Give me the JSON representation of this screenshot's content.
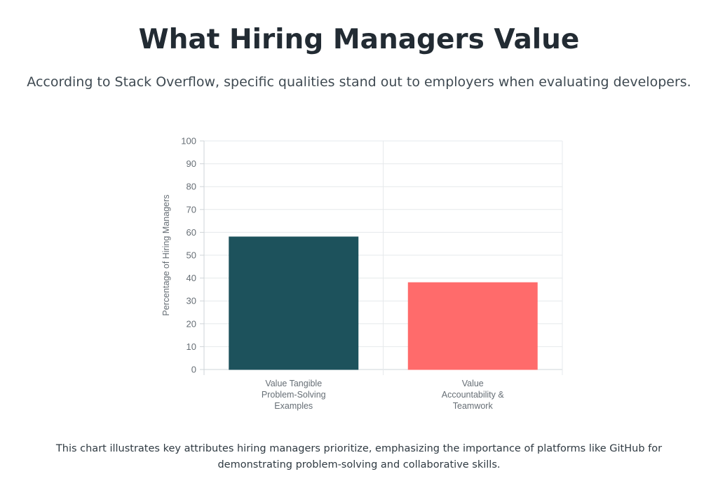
{
  "header": {
    "title": "What Hiring Managers Value",
    "subtitle": "According to Stack Overflow, specific qualities stand out to employers when evaluating developers."
  },
  "footer": {
    "caption": "This chart illustrates key attributes hiring managers prioritize, emphasizing the importance of platforms like GitHub for demonstrating problem-solving and collaborative skills."
  },
  "chart_data": {
    "type": "bar",
    "categories": [
      [
        "Value Tangible",
        "Problem-Solving",
        "Examples"
      ],
      [
        "Value",
        "Accountability &",
        "Teamwork"
      ]
    ],
    "values": [
      58,
      38
    ],
    "colors": [
      "#1d525c",
      "#ff6b6b"
    ],
    "xlabel": "",
    "ylabel": "Percentage of Hiring Managers",
    "ylim": [
      0,
      100
    ],
    "yticks": [
      0,
      10,
      20,
      30,
      40,
      50,
      60,
      70,
      80,
      90,
      100
    ],
    "grid": true,
    "legend": "none"
  }
}
